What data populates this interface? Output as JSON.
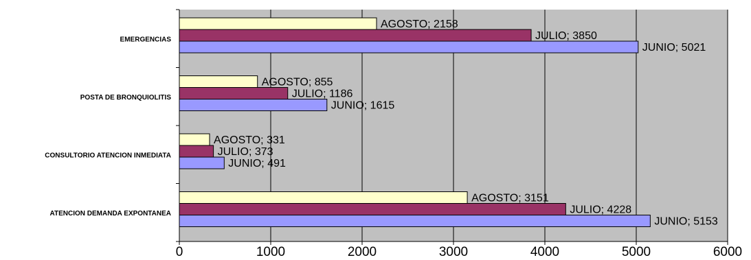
{
  "chart_data": {
    "type": "bar",
    "orientation": "horizontal",
    "title": "",
    "xlabel": "",
    "ylabel": "",
    "xlim": [
      0,
      6000
    ],
    "x_ticks": [
      0,
      1000,
      2000,
      3000,
      4000,
      5000,
      6000
    ],
    "grid": true,
    "legend": "none",
    "plot_background": "#c0c0c0",
    "categories": [
      "EMERGENCIAS",
      "POSTA DE BRONQUIOLITIS",
      "CONSULTORIO ATENCION INMEDIATA",
      "ATENCION DEMANDA EXPONTANEA"
    ],
    "series": [
      {
        "name": "AGOSTO",
        "color": "#ffffcc",
        "values": [
          2158,
          855,
          331,
          3151
        ],
        "labels": [
          "AGOSTO; 2158",
          "AGOSTO; 855",
          "AGOSTO; 331",
          "AGOSTO; 3151"
        ]
      },
      {
        "name": "JULIO",
        "color": "#993366",
        "values": [
          3850,
          1186,
          373,
          4228
        ],
        "labels": [
          "JULIO; 3850",
          "JULIO; 1186",
          "JULIO; 373",
          "JULIO; 4228"
        ]
      },
      {
        "name": "JUNIO",
        "color": "#9999ff",
        "values": [
          5021,
          1615,
          491,
          5153
        ],
        "labels": [
          "JUNIO; 5021",
          "JUNIO; 1615",
          "JUNIO; 491",
          "JUNIO; 5153"
        ]
      }
    ]
  }
}
